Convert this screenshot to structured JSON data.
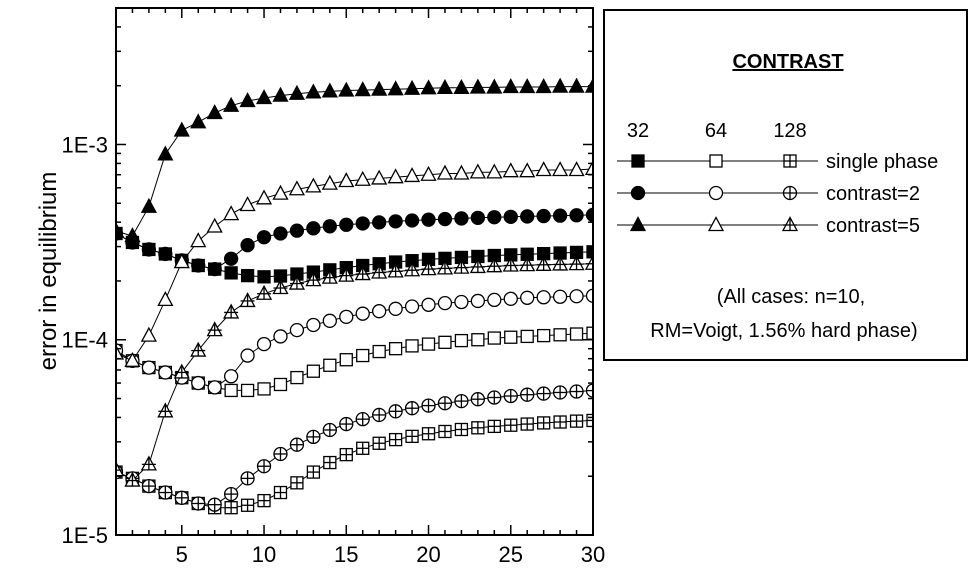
{
  "chart_data": {
    "type": "line",
    "title": "",
    "xlabel": "",
    "ylabel": "error in equilibrium",
    "xlim": [
      1,
      30
    ],
    "ylim": [
      1e-05,
      0.005
    ],
    "yscale": "log",
    "x_ticks": [
      "5",
      "10",
      "15",
      "20",
      "25",
      "30"
    ],
    "y_ticks": [
      "1E-5",
      "1E-4",
      "1E-3"
    ],
    "grid": false,
    "legend": {
      "title": "CONTRAST",
      "column_headers": [
        "32",
        "64",
        "128"
      ],
      "rows": [
        "single phase",
        "contrast=2",
        "contrast=5"
      ],
      "note_line1": "(All cases: n=10,",
      "note_line2": "RM=Voigt, 1.56% hard phase)",
      "placement": "right"
    },
    "x": [
      1,
      2,
      3,
      4,
      5,
      6,
      7,
      8,
      9,
      10,
      11,
      12,
      13,
      14,
      15,
      16,
      17,
      18,
      19,
      20,
      21,
      22,
      23,
      24,
      25,
      26,
      27,
      28,
      29,
      30
    ],
    "series": [
      {
        "name": "single phase, 32",
        "marker": "square-filled",
        "values": [
          0.00035,
          0.000315,
          0.00029,
          0.000275,
          0.000255,
          0.00024,
          0.00023,
          0.00022,
          0.000213,
          0.00021,
          0.000212,
          0.000217,
          0.000222,
          0.000228,
          0.000234,
          0.00024,
          0.000245,
          0.00025,
          0.000254,
          0.000258,
          0.000261,
          0.000264,
          0.000267,
          0.00027,
          0.000272,
          0.000274,
          0.000276,
          0.000278,
          0.00028,
          0.000282
        ]
      },
      {
        "name": "single phase, 64",
        "marker": "square-open",
        "values": [
          8.8e-05,
          7.8e-05,
          7.2e-05,
          6.8e-05,
          6.4e-05,
          6e-05,
          5.7e-05,
          5.5e-05,
          5.5e-05,
          5.6e-05,
          5.9e-05,
          6.4e-05,
          6.9e-05,
          7.4e-05,
          7.9e-05,
          8.3e-05,
          8.7e-05,
          9e-05,
          9.3e-05,
          9.5e-05,
          9.7e-05,
          9.9e-05,
          0.0001,
          0.000102,
          0.000103,
          0.000104,
          0.000105,
          0.000106,
          0.000107,
          0.000108
        ]
      },
      {
        "name": "single phase, 128",
        "marker": "square-cross",
        "values": [
          2.1e-05,
          1.95e-05,
          1.78e-05,
          1.65e-05,
          1.55e-05,
          1.45e-05,
          1.38e-05,
          1.38e-05,
          1.42e-05,
          1.5e-05,
          1.65e-05,
          1.85e-05,
          2.1e-05,
          2.35e-05,
          2.58e-05,
          2.78e-05,
          2.95e-05,
          3.08e-05,
          3.2e-05,
          3.3e-05,
          3.39e-05,
          3.47e-05,
          3.54e-05,
          3.6e-05,
          3.65e-05,
          3.7e-05,
          3.75e-05,
          3.79e-05,
          3.83e-05,
          3.86e-05
        ]
      },
      {
        "name": "contrast=2, 32",
        "marker": "circle-filled",
        "values": [
          0.00035,
          0.000315,
          0.00029,
          0.000275,
          0.000255,
          0.00024,
          0.00023,
          0.00026,
          0.000305,
          0.000335,
          0.00035,
          0.000362,
          0.000372,
          0.000381,
          0.000388,
          0.000394,
          0.000399,
          0.000404,
          0.000408,
          0.000412,
          0.000415,
          0.000418,
          0.000421,
          0.000424,
          0.000426,
          0.000428,
          0.00043,
          0.000432,
          0.000434,
          0.000436
        ]
      },
      {
        "name": "contrast=2, 64",
        "marker": "circle-open",
        "values": [
          8.8e-05,
          7.8e-05,
          7.2e-05,
          6.8e-05,
          6.4e-05,
          6e-05,
          5.7e-05,
          6.5e-05,
          8.3e-05,
          9.5e-05,
          0.000104,
          0.000112,
          0.000119,
          0.000125,
          0.000131,
          0.000136,
          0.00014,
          0.000144,
          0.000148,
          0.000151,
          0.000154,
          0.000156,
          0.000158,
          0.00016,
          0.000162,
          0.000164,
          0.000165,
          0.000166,
          0.000167,
          0.000168
        ]
      },
      {
        "name": "contrast=2, 128",
        "marker": "circle-cross",
        "values": [
          2.1e-05,
          1.95e-05,
          1.78e-05,
          1.65e-05,
          1.55e-05,
          1.45e-05,
          1.43e-05,
          1.62e-05,
          1.95e-05,
          2.25e-05,
          2.6e-05,
          2.9e-05,
          3.18e-05,
          3.45e-05,
          3.7e-05,
          3.92e-05,
          4.12e-05,
          4.3e-05,
          4.46e-05,
          4.6e-05,
          4.73e-05,
          4.85e-05,
          4.96e-05,
          5.06e-05,
          5.15e-05,
          5.23e-05,
          5.3e-05,
          5.37e-05,
          5.43e-05,
          5.49e-05
        ]
      },
      {
        "name": "contrast=5, 32",
        "marker": "triangle-filled",
        "values": [
          0.00036,
          0.00034,
          0.00048,
          0.00089,
          0.00118,
          0.0013,
          0.00145,
          0.00158,
          0.00167,
          0.00173,
          0.00178,
          0.00182,
          0.00185,
          0.00187,
          0.00189,
          0.0019,
          0.00191,
          0.00192,
          0.00193,
          0.00194,
          0.00195,
          0.00195,
          0.00196,
          0.00196,
          0.00197,
          0.00197,
          0.00197,
          0.00198,
          0.00198,
          0.00198
        ]
      },
      {
        "name": "contrast=5, 64",
        "marker": "triangle-open",
        "values": [
          8.5e-05,
          7.8e-05,
          0.000105,
          0.00016,
          0.00025,
          0.00032,
          0.00038,
          0.00044,
          0.00049,
          0.00053,
          0.00056,
          0.00059,
          0.00061,
          0.00063,
          0.00065,
          0.00066,
          0.00067,
          0.00068,
          0.00069,
          0.0007,
          0.00071,
          0.00071,
          0.00072,
          0.00072,
          0.00073,
          0.00073,
          0.00074,
          0.00074,
          0.00074,
          0.00075
        ]
      },
      {
        "name": "contrast=5, 128",
        "marker": "triangle-cross",
        "values": [
          2.15e-05,
          1.9e-05,
          2.3e-05,
          4.3e-05,
          6.8e-05,
          8.8e-05,
          0.000112,
          0.000138,
          0.000158,
          0.000172,
          0.000184,
          0.000194,
          0.000202,
          0.000208,
          0.000213,
          0.000217,
          0.000221,
          0.000224,
          0.000227,
          0.00023,
          0.000232,
          0.000234,
          0.000236,
          0.000238,
          0.00024,
          0.000241,
          0.000242,
          0.000243,
          0.000244,
          0.000245
        ]
      }
    ]
  }
}
